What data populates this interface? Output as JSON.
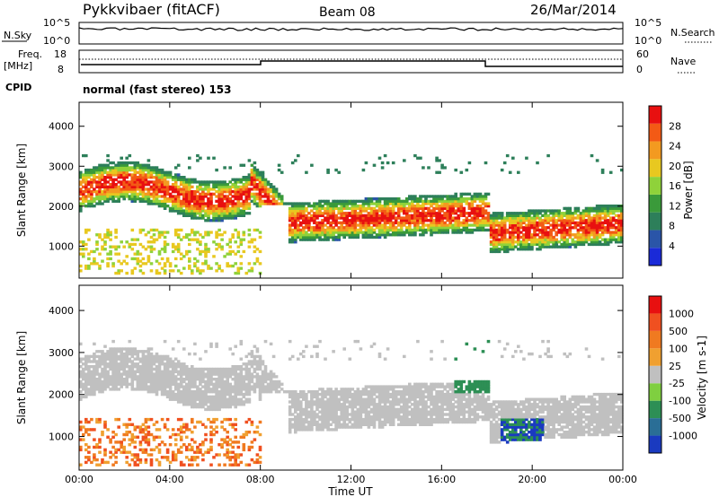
{
  "header": {
    "radar_title": "Pykkvibaer (fitACF)",
    "beam": "Beam 08",
    "date": "26/Mar/2014"
  },
  "top_panels": {
    "nsky_label": "N.Sky",
    "nsky_ticks": [
      "10^5",
      "10^0"
    ],
    "nsearch_label": "N.Search",
    "nsearch_ticks": [
      "10^5",
      "10^0"
    ],
    "freq_label_line1": "Freq.",
    "freq_label_line2": "[MHz]",
    "freq_ticks": [
      "18",
      "8"
    ],
    "nave_label": "Nave",
    "nave_ticks": [
      "60",
      "0"
    ],
    "cpid_label": "CPID",
    "cpid_value": "normal (fast stereo) 153"
  },
  "chart_data": [
    {
      "type": "heatmap",
      "name": "power",
      "ylabel": "Slant Range [km]",
      "ylim": [
        200,
        4600
      ],
      "y_ticks": [
        "4000",
        "3000",
        "2000",
        "1000"
      ],
      "x_ticks": [
        "00:00",
        "04:00",
        "08:00",
        "12:00",
        "16:00",
        "20:00",
        "00:00"
      ],
      "colorbar_label": "Power [dB]",
      "colorbar_ticks": [
        "28",
        "24",
        "20",
        "16",
        "12",
        "8",
        "4"
      ],
      "colors": [
        "#1a2ad8",
        "#2a55a8",
        "#2d7f5a",
        "#3a9a3a",
        "#8fd23a",
        "#e8c820",
        "#f39a20",
        "#f35a15",
        "#e81010"
      ]
    },
    {
      "type": "heatmap",
      "name": "velocity",
      "ylabel": "Slant Range [km]",
      "ylim": [
        200,
        4600
      ],
      "y_ticks": [
        "4000",
        "3000",
        "2000",
        "1000"
      ],
      "x_ticks": [
        "00:00",
        "04:00",
        "08:00",
        "12:00",
        "16:00",
        "20:00",
        "00:00"
      ],
      "xlabel": "Time UT",
      "colorbar_label": "Velocity [m s-1]",
      "colorbar_ticks": [
        "1000",
        "500",
        "100",
        "25",
        "-25",
        "-100",
        "-500",
        "-1000"
      ],
      "colors": [
        "#1a3ac0",
        "#2a6e96",
        "#2d8f55",
        "#7fcf40",
        "#c0c0c0",
        "#f0a030",
        "#f07a20",
        "#f05020",
        "#e81010"
      ]
    }
  ]
}
